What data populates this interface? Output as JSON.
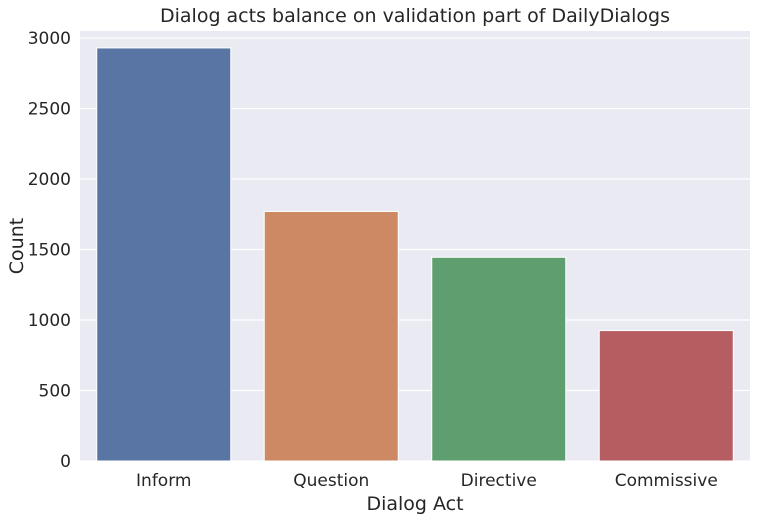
{
  "chart_data": {
    "type": "bar",
    "title": "Dialog acts balance on validation part of DailyDialogs",
    "xlabel": "Dialog Act",
    "ylabel": "Count",
    "categories": [
      "Inform",
      "Question",
      "Directive",
      "Commissive"
    ],
    "values": [
      2930,
      1770,
      1445,
      925
    ],
    "colors": [
      "#5975a4",
      "#cc8963",
      "#5f9e6e",
      "#b55d60"
    ],
    "ylim": [
      0,
      3050
    ],
    "yticks": [
      0,
      500,
      1000,
      1500,
      2000,
      2500,
      3000
    ],
    "grid": true,
    "legend": "none",
    "background": "#eaeaf2"
  }
}
